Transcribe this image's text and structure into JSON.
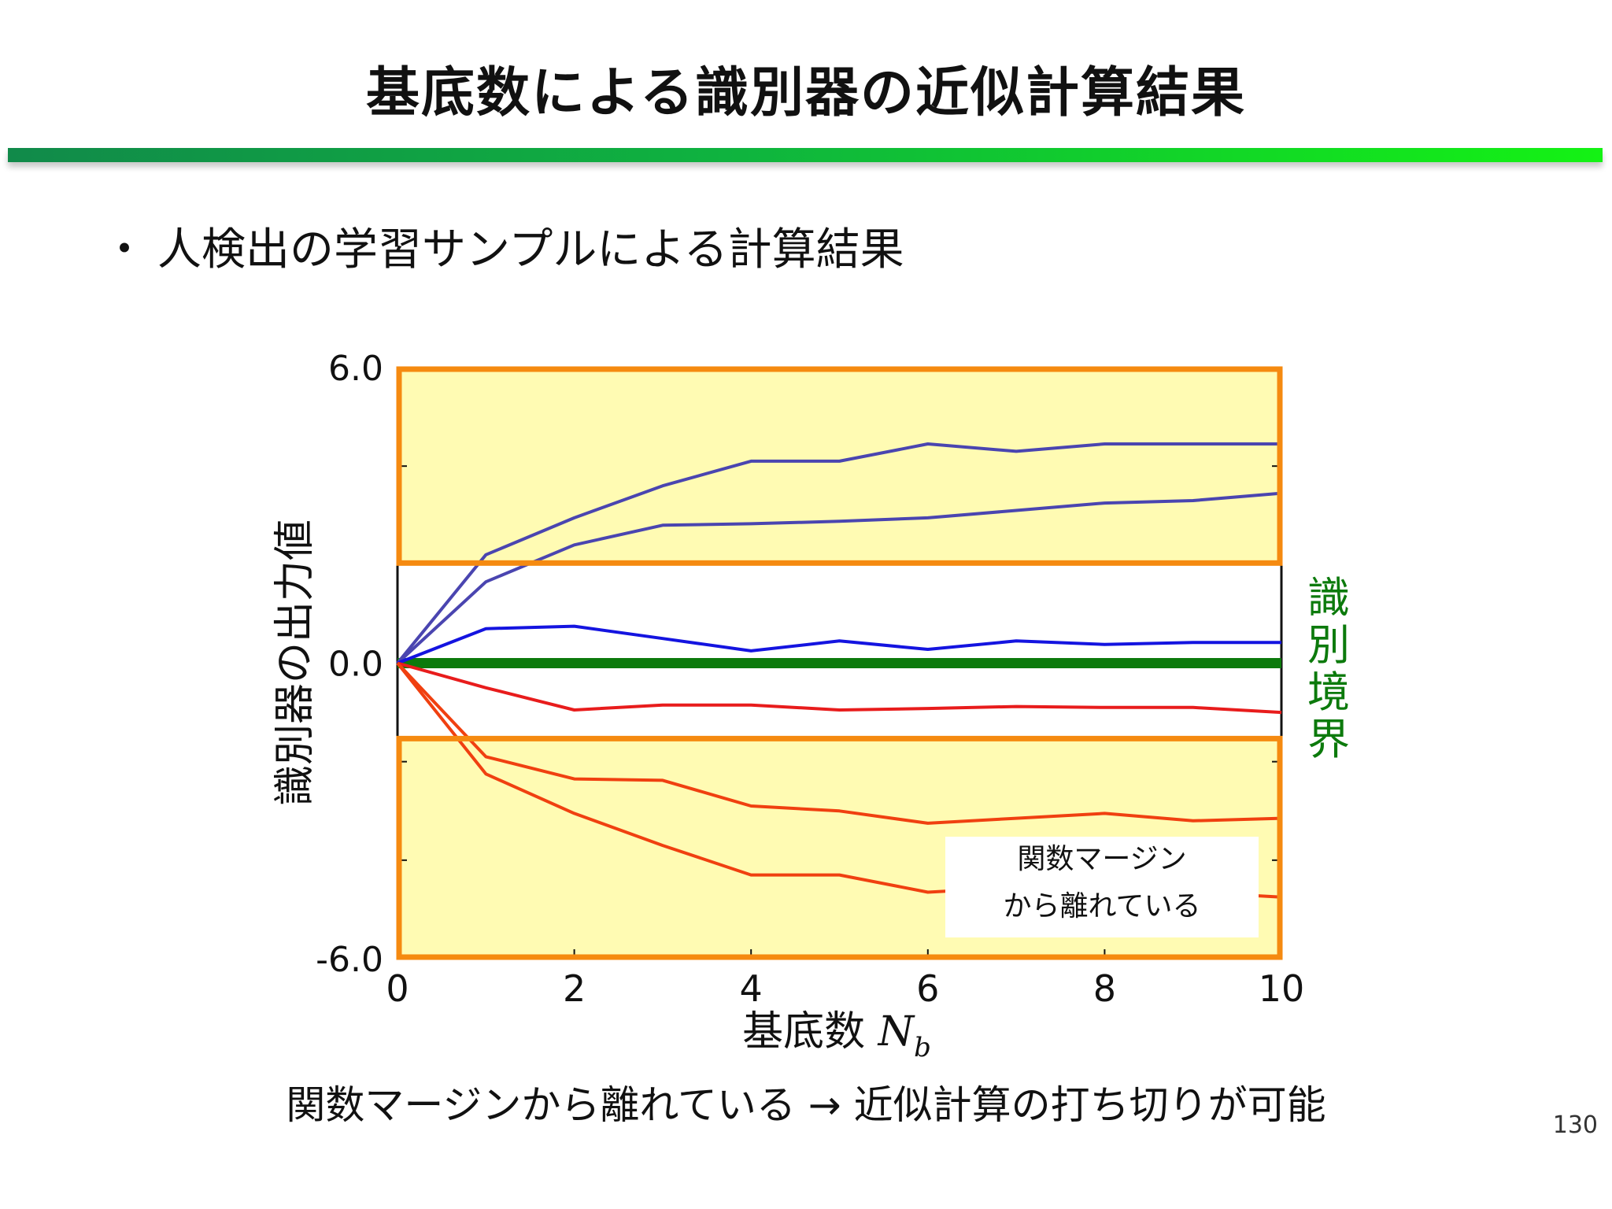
{
  "slide": {
    "title": "基底数による識別器の近似計算結果",
    "bullet_marker": "・",
    "bullet": "人検出の学習サンプルによる計算結果",
    "footnote": "関数マージンから離れている → 近似計算の打ち切りが可能",
    "page_number": "130"
  },
  "chart_data": {
    "type": "line",
    "x": [
      0,
      1,
      2,
      3,
      4,
      5,
      6,
      7,
      8,
      9,
      10
    ],
    "xlim": [
      0,
      10
    ],
    "ylim": [
      -6,
      6
    ],
    "x_ticks": [
      "0",
      "2",
      "4",
      "6",
      "8",
      "10"
    ],
    "y_tick_labels": [
      "6.0",
      "0.0",
      "-6.0"
    ],
    "xlabel": "基底数",
    "xlabel_symbol": "N",
    "xlabel_subscript": "b",
    "ylabel": "識別器の出力値",
    "margin_band_upper": [
      2.0,
      6.0
    ],
    "margin_band_lower": [
      -6.0,
      -1.5
    ],
    "decision_boundary_y": 0,
    "decision_boundary_label": "識別境界",
    "annotation": [
      "関数マージン",
      "から離れている"
    ],
    "series": [
      {
        "color": "#4a45b0",
        "values": [
          0,
          2.2,
          2.95,
          3.6,
          4.1,
          4.1,
          4.45,
          4.3,
          4.45,
          4.45,
          4.45
        ]
      },
      {
        "color": "#4a45b0",
        "values": [
          0,
          1.65,
          2.4,
          2.8,
          2.83,
          2.88,
          2.95,
          3.1,
          3.25,
          3.3,
          3.45
        ]
      },
      {
        "color": "#1414e0",
        "values": [
          0,
          0.7,
          0.75,
          0.5,
          0.25,
          0.45,
          0.28,
          0.45,
          0.38,
          0.42,
          0.42
        ]
      },
      {
        "color": "#e81c1c",
        "values": [
          0,
          -0.5,
          -0.95,
          -0.85,
          -0.85,
          -0.95,
          -0.92,
          -0.88,
          -0.9,
          -0.9,
          -1.0
        ]
      },
      {
        "color": "#f04010",
        "values": [
          0,
          -1.9,
          -2.35,
          -2.38,
          -2.9,
          -3.0,
          -3.25,
          -3.15,
          -3.05,
          -3.2,
          -3.15
        ]
      },
      {
        "color": "#f04010",
        "values": [
          0,
          -2.25,
          -3.05,
          -3.7,
          -4.3,
          -4.3,
          -4.65,
          -4.55,
          -4.5,
          -4.65,
          -4.75
        ]
      }
    ],
    "colors": {
      "band_fill": "#fffbb3",
      "band_border": "#f58a10",
      "boundary": "#0c7a0c",
      "axis": "#111111"
    }
  }
}
